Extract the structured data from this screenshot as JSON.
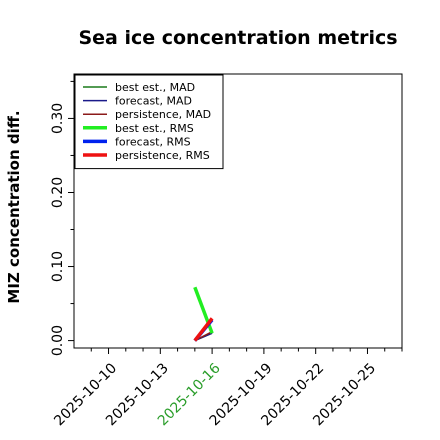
{
  "chart_data": {
    "type": "line",
    "title": "Sea ice concentration metrics",
    "xlabel": "",
    "ylabel": "MIZ concentration diff.",
    "xlim": [
      "2025-10-08",
      "2025-10-27"
    ],
    "ylim": [
      -0.01,
      0.36
    ],
    "x_ticks": [
      "2025-10-10",
      "2025-10-13",
      "2025-10-16",
      "2025-10-19",
      "2025-10-22",
      "2025-10-25"
    ],
    "x_tick_colors": [
      "#000000",
      "#000000",
      "#2a9d2a",
      "#000000",
      "#000000",
      "#000000"
    ],
    "y_ticks": [
      0.0,
      0.1,
      0.2,
      0.3
    ],
    "y_tick_labels": [
      "0.00",
      "0.10",
      "0.20",
      "0.30"
    ],
    "grid": false,
    "legend_position": "upper-left",
    "series": [
      {
        "name": "best est., MAD",
        "color": "#1a7a1a",
        "width": 1.5,
        "x": [
          "2025-10-15",
          "2025-10-16"
        ],
        "y": [
          0.0,
          0.01
        ]
      },
      {
        "name": "forecast,  MAD",
        "color": "#1a1a8a",
        "width": 1.5,
        "x": [
          "2025-10-15",
          "2025-10-16"
        ],
        "y": [
          0.0,
          0.01
        ]
      },
      {
        "name": "persistence, MAD",
        "color": "#8b1a1a",
        "width": 1.5,
        "x": [
          "2025-10-15",
          "2025-10-16"
        ],
        "y": [
          0.0,
          0.012
        ]
      },
      {
        "name": "best est., RMS",
        "color": "#22ee22",
        "width": 3.5,
        "x": [
          "2025-10-15",
          "2025-10-16"
        ],
        "y": [
          0.072,
          0.01
        ]
      },
      {
        "name": "forecast,  RMS",
        "color": "#0022ee",
        "width": 3.5,
        "x": [
          "2025-10-15",
          "2025-10-16"
        ],
        "y": [
          0.0,
          0.028
        ]
      },
      {
        "name": "persistence, RMS",
        "color": "#ee1111",
        "width": 3.5,
        "x": [
          "2025-10-15",
          "2025-10-16"
        ],
        "y": [
          0.0,
          0.03
        ]
      }
    ]
  }
}
